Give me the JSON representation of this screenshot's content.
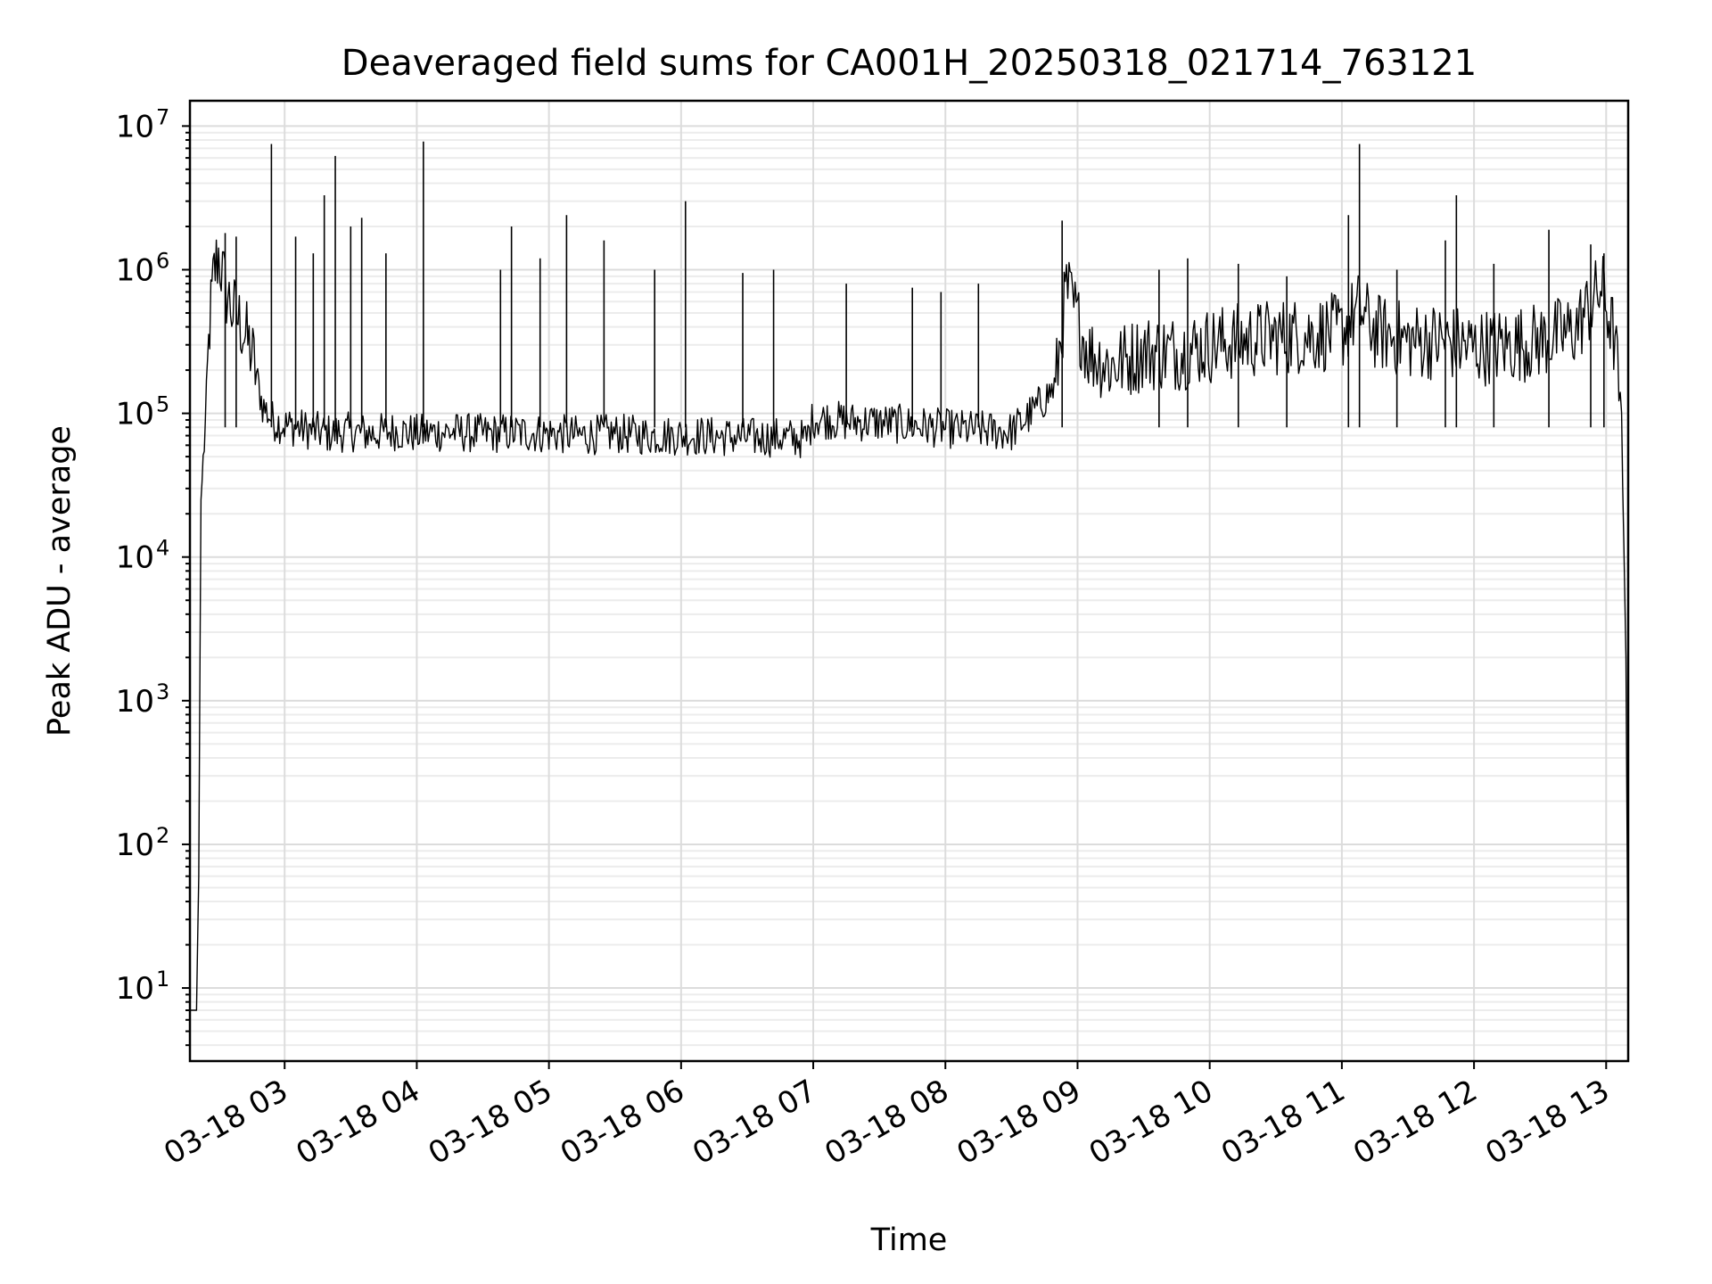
{
  "chart_data": {
    "type": "line",
    "title": "Deaveraged field sums for CA001H_20250318_021714_763121",
    "xlabel": "Time",
    "ylabel": "Peak ADU - average",
    "yscale": "log",
    "ylim": [
      3.1,
      15000000
    ],
    "xlim": [
      "2025-03-18 02:17",
      "2025-03-18 13:10"
    ],
    "x_ticks": [
      "03-18 03",
      "03-18 04",
      "03-18 05",
      "03-18 06",
      "03-18 07",
      "03-18 08",
      "03-18 09",
      "03-18 10",
      "03-18 11",
      "03-18 12",
      "03-18 13"
    ],
    "y_ticks": [
      {
        "value": 10,
        "base": "10",
        "exp": "1"
      },
      {
        "value": 100,
        "base": "10",
        "exp": "2"
      },
      {
        "value": 1000,
        "base": "10",
        "exp": "3"
      },
      {
        "value": 10000,
        "base": "10",
        "exp": "4"
      },
      {
        "value": 100000,
        "base": "10",
        "exp": "5"
      },
      {
        "value": 1000000,
        "base": "10",
        "exp": "6"
      },
      {
        "value": 10000000,
        "base": "10",
        "exp": "7"
      }
    ],
    "grid": "major and minor",
    "line_color": "#000000",
    "series": [
      {
        "x": [
          "2025-03-18 02:17",
          "2025-03-18 02:20",
          "2025-03-18 02:21",
          "2025-03-18 02:22",
          "2025-03-18 02:24",
          "2025-03-18 02:26",
          "2025-03-18 02:28",
          "2025-03-18 02:30",
          "2025-03-18 02:33",
          "2025-03-18 02:36",
          "2025-03-18 02:40",
          "2025-03-18 02:45",
          "2025-03-18 02:50",
          "2025-03-18 02:55",
          "2025-03-18 03:00",
          "2025-03-18 03:10",
          "2025-03-18 03:20",
          "2025-03-18 03:30",
          "2025-03-18 03:40",
          "2025-03-18 03:50",
          "2025-03-18 04:00",
          "2025-03-18 04:15",
          "2025-03-18 04:30",
          "2025-03-18 04:45",
          "2025-03-18 05:00",
          "2025-03-18 05:15",
          "2025-03-18 05:30",
          "2025-03-18 05:45",
          "2025-03-18 06:00",
          "2025-03-18 06:15",
          "2025-03-18 06:30",
          "2025-03-18 06:45",
          "2025-03-18 06:57",
          "2025-03-18 07:00",
          "2025-03-18 07:15",
          "2025-03-18 07:30",
          "2025-03-18 07:45",
          "2025-03-18 08:00",
          "2025-03-18 08:15",
          "2025-03-18 08:30",
          "2025-03-18 08:40",
          "2025-03-18 08:50",
          "2025-03-18 08:55",
          "2025-03-18 09:05",
          "2025-03-18 09:15",
          "2025-03-18 09:30",
          "2025-03-18 09:45",
          "2025-03-18 10:00",
          "2025-03-18 10:15",
          "2025-03-18 10:30",
          "2025-03-18 10:45",
          "2025-03-18 11:00",
          "2025-03-18 11:08",
          "2025-03-18 11:15",
          "2025-03-18 11:30",
          "2025-03-18 11:45",
          "2025-03-18 12:00",
          "2025-03-18 12:15",
          "2025-03-18 12:30",
          "2025-03-18 12:45",
          "2025-03-18 12:58",
          "2025-03-18 13:04",
          "2025-03-18 13:07",
          "2025-03-18 13:09",
          "2025-03-18 13:10"
        ],
        "values": [
          7,
          7,
          60,
          25000,
          80000,
          400000,
          900000,
          1200000,
          700000,
          500000,
          400000,
          250000,
          110000,
          85000,
          80000,
          75000,
          70000,
          72000,
          70000,
          73000,
          70000,
          72000,
          70000,
          71000,
          70000,
          68000,
          70000,
          68000,
          68000,
          67000,
          66000,
          66000,
          64000,
          90000,
          85000,
          84000,
          80000,
          76000,
          74000,
          72000,
          100000,
          150000,
          700000,
          250000,
          200000,
          250000,
          250000,
          280000,
          300000,
          320000,
          330000,
          350000,
          500000,
          350000,
          300000,
          300000,
          270000,
          280000,
          300000,
          350000,
          700000,
          300000,
          80000,
          2000,
          6
        ]
      }
    ],
    "spikes": [
      {
        "x": "2025-03-18 02:33",
        "y": 1800000
      },
      {
        "x": "2025-03-18 02:38",
        "y": 1700000
      },
      {
        "x": "2025-03-18 02:54",
        "y": 7500000
      },
      {
        "x": "2025-03-18 03:05",
        "y": 1700000
      },
      {
        "x": "2025-03-18 03:13",
        "y": 1300000
      },
      {
        "x": "2025-03-18 03:18",
        "y": 3300000
      },
      {
        "x": "2025-03-18 03:23",
        "y": 6200000
      },
      {
        "x": "2025-03-18 03:30",
        "y": 2000000
      },
      {
        "x": "2025-03-18 03:35",
        "y": 2300000
      },
      {
        "x": "2025-03-18 03:46",
        "y": 1300000
      },
      {
        "x": "2025-03-18 04:03",
        "y": 7800000
      },
      {
        "x": "2025-03-18 04:38",
        "y": 1000000
      },
      {
        "x": "2025-03-18 04:43",
        "y": 2000000
      },
      {
        "x": "2025-03-18 04:56",
        "y": 1200000
      },
      {
        "x": "2025-03-18 05:08",
        "y": 2400000
      },
      {
        "x": "2025-03-18 05:25",
        "y": 1600000
      },
      {
        "x": "2025-03-18 05:48",
        "y": 1000000
      },
      {
        "x": "2025-03-18 06:02",
        "y": 3000000
      },
      {
        "x": "2025-03-18 06:28",
        "y": 950000
      },
      {
        "x": "2025-03-18 06:42",
        "y": 1000000
      },
      {
        "x": "2025-03-18 07:15",
        "y": 800000
      },
      {
        "x": "2025-03-18 07:45",
        "y": 750000
      },
      {
        "x": "2025-03-18 07:58",
        "y": 700000
      },
      {
        "x": "2025-03-18 08:15",
        "y": 800000
      },
      {
        "x": "2025-03-18 08:53",
        "y": 2200000
      },
      {
        "x": "2025-03-18 09:37",
        "y": 1000000
      },
      {
        "x": "2025-03-18 09:50",
        "y": 1200000
      },
      {
        "x": "2025-03-18 10:13",
        "y": 1100000
      },
      {
        "x": "2025-03-18 10:35",
        "y": 900000
      },
      {
        "x": "2025-03-18 11:03",
        "y": 2400000
      },
      {
        "x": "2025-03-18 11:08",
        "y": 7500000
      },
      {
        "x": "2025-03-18 11:25",
        "y": 1000000
      },
      {
        "x": "2025-03-18 11:47",
        "y": 1600000
      },
      {
        "x": "2025-03-18 11:52",
        "y": 3300000
      },
      {
        "x": "2025-03-18 12:09",
        "y": 1100000
      },
      {
        "x": "2025-03-18 12:34",
        "y": 1900000
      },
      {
        "x": "2025-03-18 12:53",
        "y": 1500000
      },
      {
        "x": "2025-03-18 12:59",
        "y": 1300000
      }
    ]
  }
}
